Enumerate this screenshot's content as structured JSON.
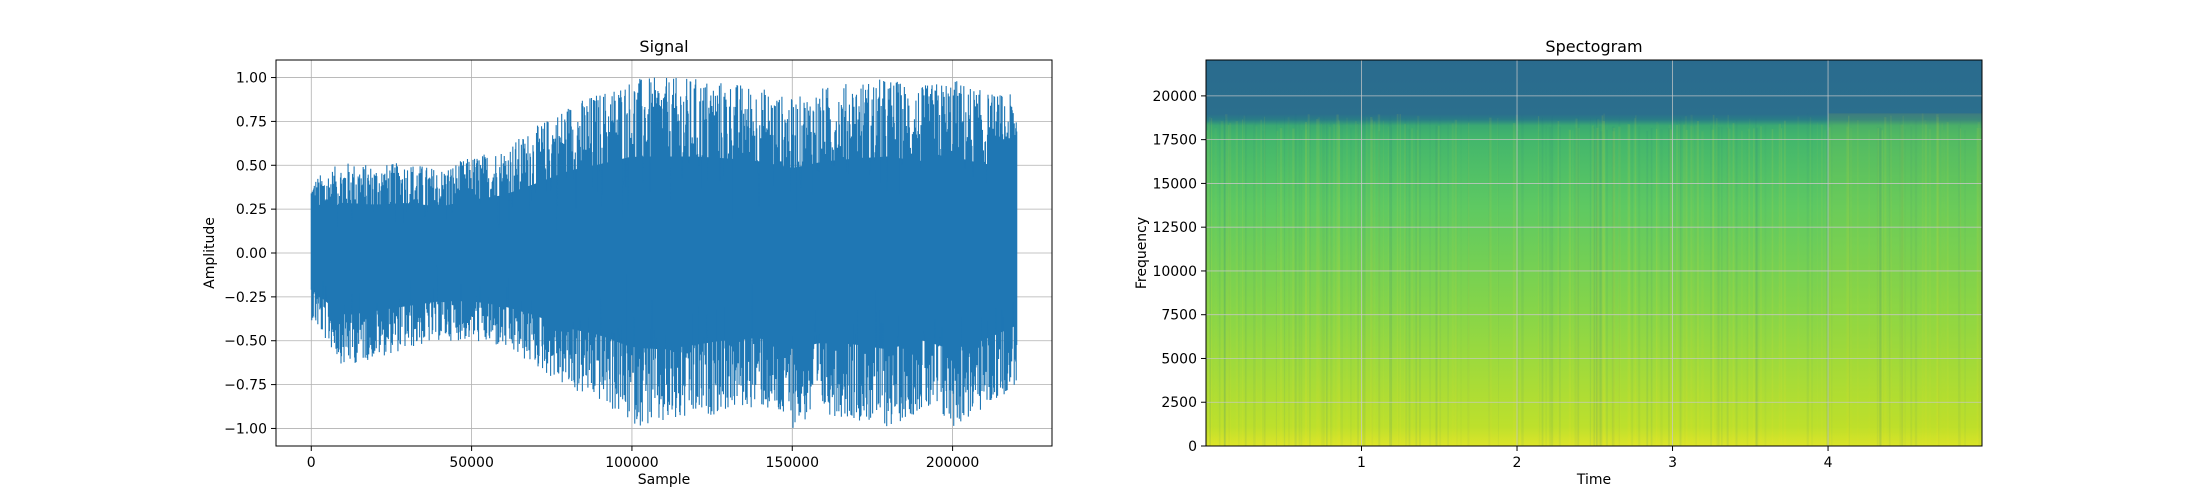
{
  "chart_data": [
    {
      "type": "line",
      "title": "Signal",
      "xlabel": "Sample",
      "ylabel": "Amplitude",
      "xlim": [
        -11000,
        231000
      ],
      "ylim": [
        -1.1,
        1.1
      ],
      "xticks": [
        0,
        50000,
        100000,
        150000,
        200000
      ],
      "yticks": [
        -1.0,
        -0.75,
        -0.5,
        -0.25,
        0.0,
        0.25,
        0.5,
        0.75,
        1.0
      ],
      "xtick_labels": [
        "0",
        "50000",
        "100000",
        "150000",
        "200000"
      ],
      "ytick_labels": [
        "−1.00",
        "−0.75",
        "−0.50",
        "−0.25",
        "0.00",
        "0.25",
        "0.50",
        "0.75",
        "1.00"
      ],
      "grid": true,
      "color": "#1f77b4",
      "series": [
        {
          "x": [
            0,
            10000,
            20000,
            30000,
            40000,
            50000,
            60000,
            70000,
            80000,
            90000,
            100000,
            110000,
            120000,
            130000,
            140000,
            150000,
            160000,
            170000,
            180000,
            190000,
            200000,
            210000,
            220000
          ],
          "upper": [
            0.42,
            0.52,
            0.5,
            0.52,
            0.48,
            0.55,
            0.6,
            0.72,
            0.85,
            0.92,
            1.0,
            1.0,
            1.0,
            0.98,
            0.95,
            0.88,
            0.95,
            0.98,
            1.0,
            0.95,
            1.0,
            0.92,
            0.9
          ],
          "lower": [
            -0.38,
            -0.65,
            -0.6,
            -0.55,
            -0.5,
            -0.5,
            -0.55,
            -0.65,
            -0.78,
            -0.85,
            -0.98,
            -1.0,
            -0.95,
            -0.9,
            -0.88,
            -1.0,
            -0.92,
            -0.95,
            -1.0,
            -0.9,
            -1.0,
            -0.9,
            -0.75
          ]
        }
      ]
    },
    {
      "type": "heatmap",
      "title": "Spectogram",
      "xlabel": "Time",
      "ylabel": "Frequency",
      "xlim": [
        0,
        4.99
      ],
      "ylim": [
        0,
        22050
      ],
      "xticks": [
        1,
        2,
        3,
        4
      ],
      "yticks": [
        0,
        2500,
        5000,
        7500,
        10000,
        12500,
        15000,
        17500,
        20000
      ],
      "xtick_labels": [
        "1",
        "2",
        "3",
        "4"
      ],
      "ytick_labels": [
        "0",
        "2500",
        "5000",
        "7500",
        "10000",
        "12500",
        "15000",
        "17500",
        "20000"
      ],
      "grid": true,
      "colormap": "viridis",
      "cutoff_frequency": 19000,
      "colors": {
        "low": "#2c6e8e",
        "mid": "#3cb865",
        "high": "#c2df23"
      }
    }
  ]
}
